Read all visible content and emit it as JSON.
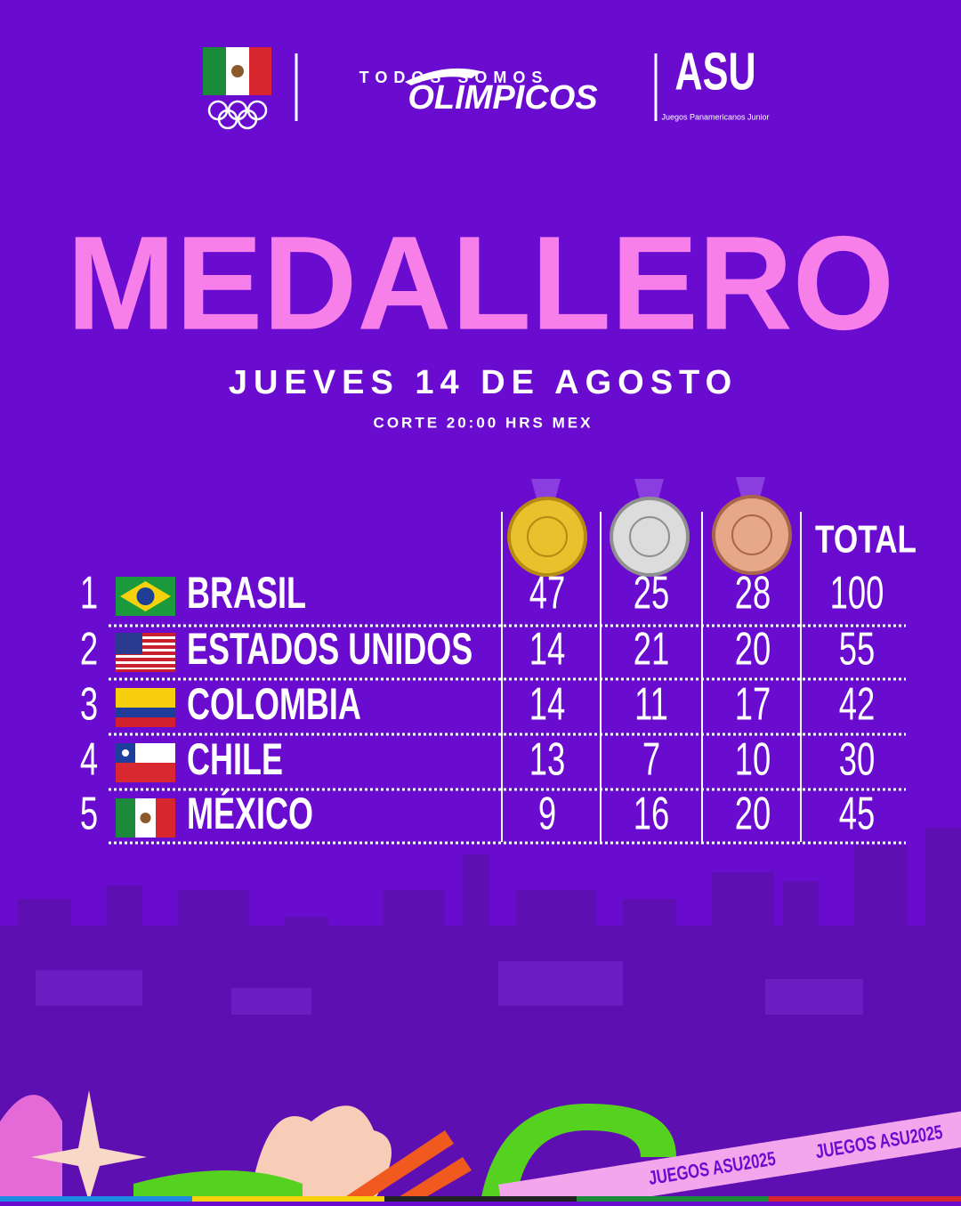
{
  "header": {
    "brand_top": "TODOS SOMOS",
    "brand_bottom": "OLIMPICOS",
    "logo": "ASU",
    "logo_caption": "Juegos Panamericanos Junior"
  },
  "title": "MEDALLERO",
  "date": "JUEVES 14 DE AGOSTO",
  "cutoff": "CORTE 20:00 HRS MEX",
  "table": {
    "total_header": "TOTAL",
    "rows": [
      [
        1,
        "BRASIL",
        47,
        25,
        28,
        100
      ],
      [
        2,
        "ESTADOS UNIDOS",
        14,
        21,
        20,
        55
      ],
      [
        3,
        "COLOMBIA",
        14,
        11,
        17,
        42
      ],
      [
        4,
        "CHILE",
        13,
        7,
        10,
        30
      ],
      [
        5,
        "MÉXICO",
        9,
        16,
        20,
        45
      ]
    ]
  },
  "banner": "JUEGOS ASU2025"
}
